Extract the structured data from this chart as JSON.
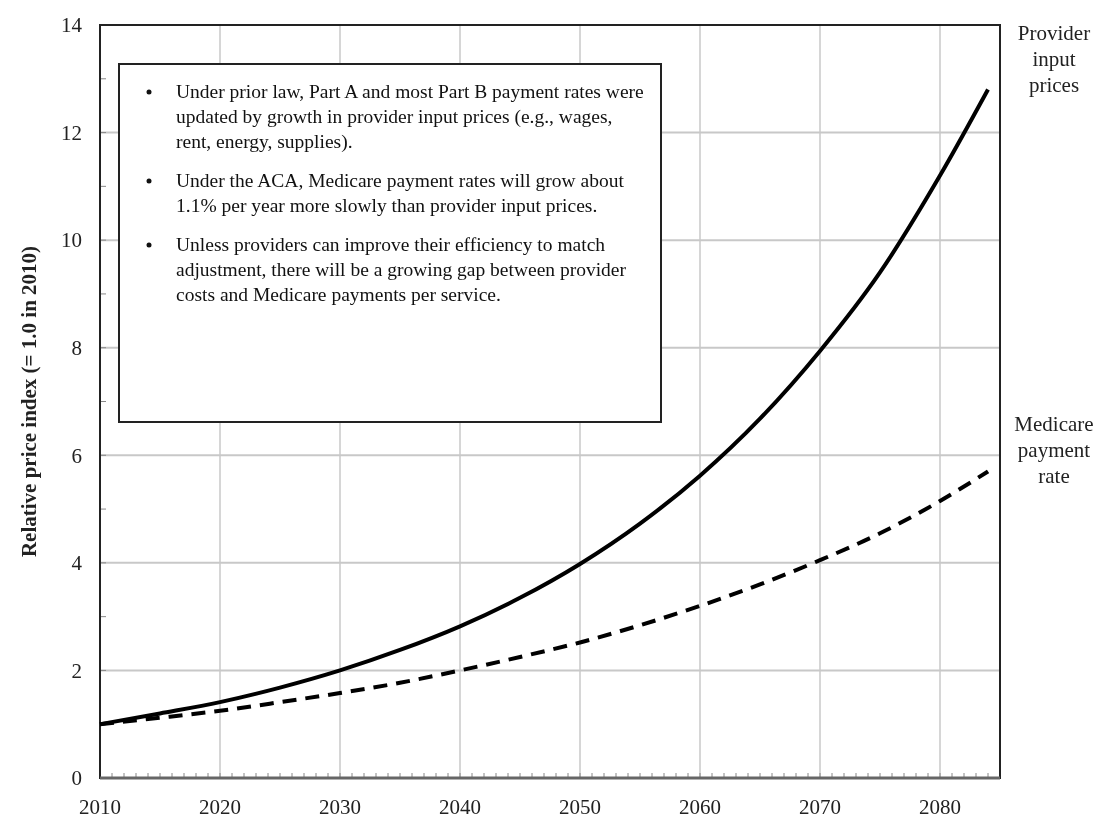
{
  "chart_data": {
    "type": "line",
    "ylabel": "Relative price index (= 1.0 in 2010)",
    "x": [
      2010,
      2015,
      2020,
      2025,
      2030,
      2035,
      2040,
      2045,
      2050,
      2055,
      2060,
      2065,
      2070,
      2075,
      2080,
      2084
    ],
    "series": [
      {
        "name": "Provider input prices",
        "color": "#000000",
        "line_style": "solid",
        "values": [
          1.0,
          1.2,
          1.41,
          1.68,
          2.0,
          2.38,
          2.82,
          3.35,
          3.98,
          4.73,
          5.62,
          6.68,
          7.94,
          9.4,
          11.2,
          12.8
        ]
      },
      {
        "name": "Medicare payment rate",
        "color": "#000000",
        "line_style": "dashed",
        "values": [
          1.0,
          1.12,
          1.25,
          1.41,
          1.58,
          1.77,
          2.0,
          2.25,
          2.52,
          2.84,
          3.2,
          3.6,
          4.05,
          4.55,
          5.15,
          5.7
        ]
      }
    ],
    "xlim": [
      2010,
      2085
    ],
    "xticks": [
      2010,
      2020,
      2030,
      2040,
      2050,
      2060,
      2070,
      2080
    ],
    "ylim": [
      0,
      14
    ],
    "yticks": [
      0,
      2,
      4,
      6,
      8,
      10,
      12,
      14
    ],
    "grid": true,
    "marker": "none",
    "annotations": [
      "Under prior law, Part A and most Part B payment rates were updated by growth in provider input prices (e.g., wages, rent, energy, supplies).",
      "Under the ACA, Medicare payment rates will grow about 1.1% per year more slowly than provider input prices.",
      "Unless providers can improve their efficiency to match adjustment, there will be a growing gap between provider costs and Medicare payments per service."
    ]
  }
}
